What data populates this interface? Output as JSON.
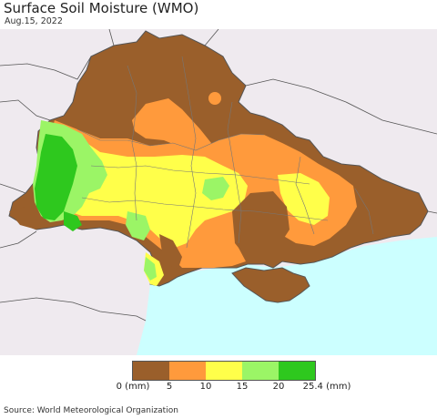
{
  "header": {
    "title": "Surface Soil Moisture (WMO)",
    "date": "Aug.15, 2022"
  },
  "legend": {
    "colors": [
      "#9a5f2b",
      "#ff9a3c",
      "#ffff4a",
      "#9bf566",
      "#2ec81e"
    ],
    "labels": {
      "l0": "0 (mm)",
      "l1": "5",
      "l2": "10",
      "l3": "15",
      "l4": "20",
      "l5": "25.4 (mm)"
    }
  },
  "colors": {
    "sea": "#ccffff",
    "outside": "#efeaef",
    "border": "#555555",
    "dry": "#9a5f2b",
    "low": "#ff9a3c",
    "mid": "#ffff4a",
    "high": "#9bf566",
    "wet": "#2ec81e"
  },
  "footer": {
    "source": "Source: World Meteorological Organization"
  }
}
